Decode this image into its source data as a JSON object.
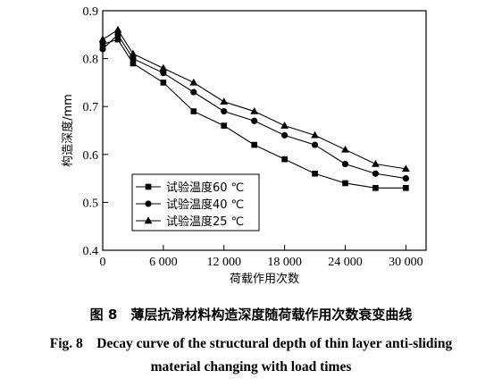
{
  "chart_data": {
    "type": "line",
    "xlabel": "荷载作用次数",
    "ylabel": "构造深度/mm",
    "xlim": [
      0,
      32000
    ],
    "ylim": [
      0.4,
      0.9
    ],
    "xticks": [
      0,
      6000,
      12000,
      18000,
      24000,
      30000
    ],
    "xtick_labels": [
      "0",
      "6 000",
      "12 000",
      "18 000",
      "24 000",
      "30 000"
    ],
    "yticks": [
      0.4,
      0.5,
      0.6,
      0.7,
      0.8,
      0.9
    ],
    "ytick_labels": [
      "0.4",
      "0.5",
      "0.6",
      "0.7",
      "0.8",
      "0.9"
    ],
    "grid": false,
    "legend_position": "bottom-left",
    "x": [
      0,
      1500,
      3000,
      6000,
      9000,
      12000,
      15000,
      18000,
      21000,
      24000,
      27000,
      30000
    ],
    "series": [
      {
        "name": "试验温度60 ℃",
        "marker": "square",
        "values": [
          0.83,
          0.84,
          0.79,
          0.75,
          0.69,
          0.66,
          0.62,
          0.59,
          0.56,
          0.54,
          0.53,
          0.53
        ]
      },
      {
        "name": "试验温度40 ℃",
        "marker": "circle",
        "values": [
          0.82,
          0.85,
          0.8,
          0.77,
          0.73,
          0.69,
          0.67,
          0.64,
          0.62,
          0.58,
          0.56,
          0.55
        ]
      },
      {
        "name": "试验温度25 ℃",
        "marker": "triangle",
        "values": [
          0.84,
          0.86,
          0.81,
          0.78,
          0.75,
          0.71,
          0.69,
          0.66,
          0.64,
          0.61,
          0.58,
          0.57
        ]
      }
    ]
  },
  "caption": {
    "cn": "图 8　薄层抗滑材料构造深度随荷载作用次数衰变曲线",
    "en_line1": "Fig. 8　Decay curve of the structural depth of thin layer anti-sliding",
    "en_line2": "material changing with load times"
  }
}
